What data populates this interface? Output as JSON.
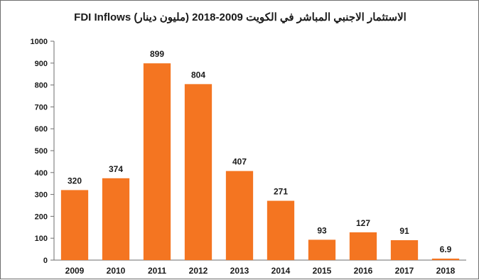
{
  "chart_data": {
    "type": "bar",
    "title": "الاستثمار الاجنبي المباشر في الكويت 2009-2018 (مليون دينار) FDI Inflows",
    "categories": [
      "2009",
      "2010",
      "2011",
      "2012",
      "2013",
      "2014",
      "2015",
      "2016",
      "2017",
      "2018"
    ],
    "values": [
      320,
      374,
      899,
      804,
      407,
      271,
      93,
      127,
      91,
      6.9
    ],
    "value_labels": [
      "320",
      "374",
      "899",
      "804",
      "407",
      "271",
      "93",
      "127",
      "91",
      "6.9"
    ],
    "xlabel": "",
    "ylabel": "",
    "ylim": [
      0,
      1000
    ],
    "yticks": [
      0,
      100,
      200,
      300,
      400,
      500,
      600,
      700,
      800,
      900,
      1000
    ],
    "grid": false,
    "legend": "none",
    "bar_color": "#f47521"
  }
}
